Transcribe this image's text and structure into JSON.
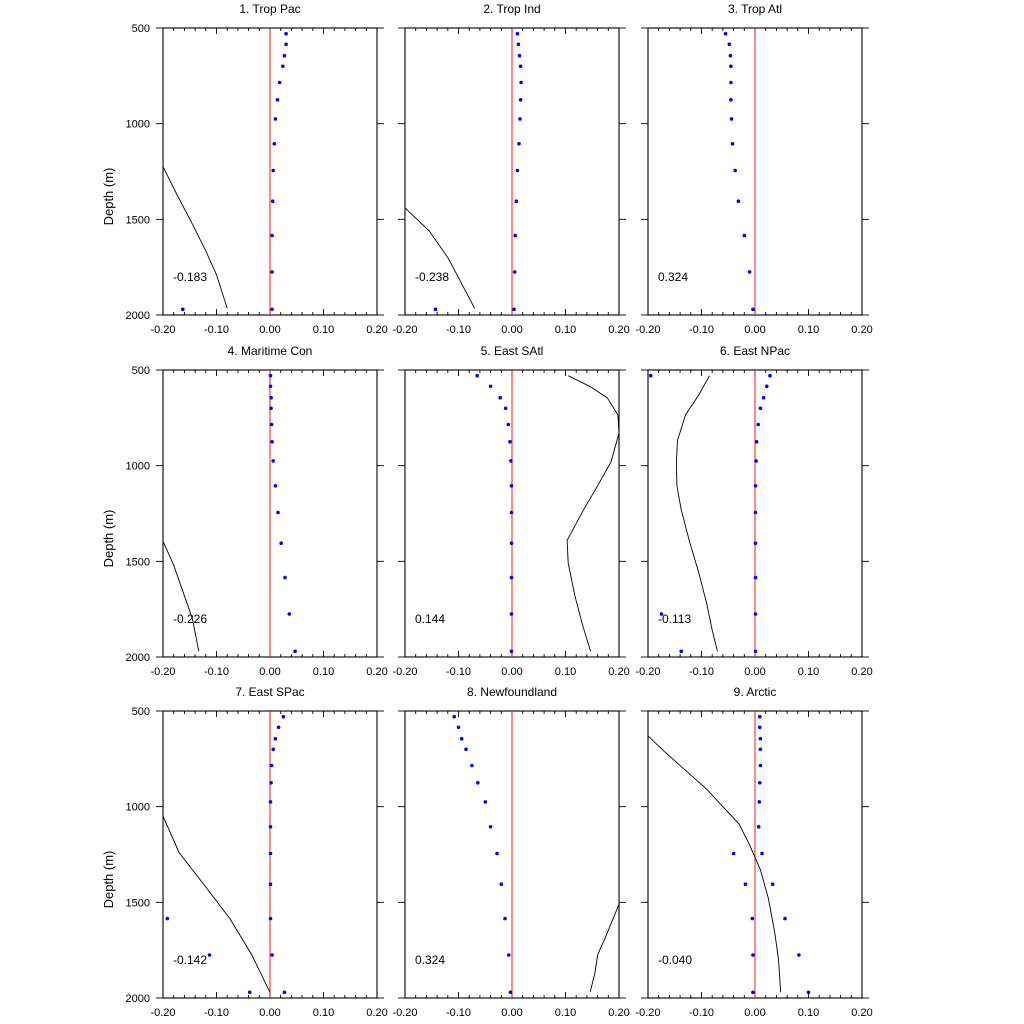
{
  "figure": {
    "ylabel": "Depth (m)",
    "xlim": [
      -0.2,
      0.2
    ],
    "ylim": [
      500,
      2000
    ],
    "y_inverted": true,
    "x_ticks": [
      "-0.20",
      "-0.10",
      "0.00",
      "0.10",
      "0.20"
    ],
    "y_ticks": [
      "500",
      "1000",
      "1500",
      "2000"
    ],
    "point_color": "#0000ff",
    "zero_line_color": "#ff0000",
    "curve_color": "#000000"
  },
  "chart_data": [
    {
      "type": "scatter",
      "title": "1. Trop Pac",
      "annotation": "-0.183",
      "points": [
        [
          0.03,
          530
        ],
        [
          0.03,
          585
        ],
        [
          0.027,
          645
        ],
        [
          0.024,
          700
        ],
        [
          0.018,
          785
        ],
        [
          0.014,
          875
        ],
        [
          0.01,
          975
        ],
        [
          0.008,
          1105
        ],
        [
          0.006,
          1245
        ],
        [
          0.005,
          1405
        ],
        [
          0.004,
          1585
        ],
        [
          0.004,
          1775
        ],
        [
          0.004,
          1970
        ],
        [
          -0.163,
          1970
        ]
      ],
      "curve": [
        [
          -0.2,
          1225
        ],
        [
          -0.175,
          1365
        ],
        [
          -0.145,
          1525
        ],
        [
          -0.12,
          1665
        ],
        [
          -0.1,
          1790
        ],
        [
          -0.08,
          1965
        ]
      ]
    },
    {
      "type": "scatter",
      "title": "2. Trop Ind",
      "annotation": "-0.238",
      "points": [
        [
          0.01,
          530
        ],
        [
          0.012,
          585
        ],
        [
          0.014,
          645
        ],
        [
          0.016,
          700
        ],
        [
          0.017,
          785
        ],
        [
          0.016,
          875
        ],
        [
          0.015,
          975
        ],
        [
          0.013,
          1105
        ],
        [
          0.01,
          1245
        ],
        [
          0.008,
          1405
        ],
        [
          0.006,
          1585
        ],
        [
          0.005,
          1775
        ],
        [
          0.004,
          1970
        ],
        [
          -0.143,
          1970
        ]
      ],
      "curve": [
        [
          -0.2,
          1440
        ],
        [
          -0.155,
          1560
        ],
        [
          -0.12,
          1700
        ],
        [
          -0.1,
          1805
        ],
        [
          -0.07,
          1965
        ]
      ]
    },
    {
      "type": "scatter",
      "title": "3. Trop Atl",
      "annotation": "0.324",
      "points": [
        [
          -0.055,
          530
        ],
        [
          -0.048,
          585
        ],
        [
          -0.046,
          645
        ],
        [
          -0.045,
          700
        ],
        [
          -0.045,
          785
        ],
        [
          -0.045,
          875
        ],
        [
          -0.044,
          975
        ],
        [
          -0.042,
          1105
        ],
        [
          -0.037,
          1245
        ],
        [
          -0.031,
          1405
        ],
        [
          -0.02,
          1585
        ],
        [
          -0.01,
          1775
        ],
        [
          -0.004,
          1970
        ]
      ],
      "curve": []
    },
    {
      "type": "scatter",
      "title": "4. Maritime Con",
      "annotation": "-0.226",
      "points": [
        [
          0.001,
          530
        ],
        [
          0.001,
          585
        ],
        [
          0.002,
          645
        ],
        [
          0.002,
          700
        ],
        [
          0.003,
          785
        ],
        [
          0.004,
          875
        ],
        [
          0.006,
          975
        ],
        [
          0.01,
          1105
        ],
        [
          0.015,
          1245
        ],
        [
          0.021,
          1405
        ],
        [
          0.028,
          1585
        ],
        [
          0.036,
          1775
        ],
        [
          0.047,
          1970
        ]
      ],
      "curve": [
        [
          -0.2,
          1395
        ],
        [
          -0.18,
          1520
        ],
        [
          -0.16,
          1680
        ],
        [
          -0.145,
          1800
        ],
        [
          -0.133,
          1970
        ]
      ]
    },
    {
      "type": "scatter",
      "title": "5. East SAtl",
      "annotation": "0.144",
      "points": [
        [
          -0.065,
          530
        ],
        [
          -0.04,
          585
        ],
        [
          -0.022,
          645
        ],
        [
          -0.012,
          700
        ],
        [
          -0.007,
          785
        ],
        [
          -0.004,
          875
        ],
        [
          -0.002,
          975
        ],
        [
          -0.001,
          1105
        ],
        [
          -0.001,
          1245
        ],
        [
          -0.001,
          1405
        ],
        [
          -0.001,
          1585
        ],
        [
          -0.001,
          1775
        ],
        [
          -0.001,
          1970
        ]
      ],
      "curve": [
        [
          0.105,
          530
        ],
        [
          0.145,
          585
        ],
        [
          0.178,
          645
        ],
        [
          0.198,
          735
        ],
        [
          0.2,
          830
        ],
        [
          0.185,
          980
        ],
        [
          0.16,
          1105
        ],
        [
          0.135,
          1225
        ],
        [
          0.103,
          1390
        ],
        [
          0.105,
          1510
        ],
        [
          0.118,
          1685
        ],
        [
          0.133,
          1845
        ],
        [
          0.147,
          1970
        ]
      ]
    },
    {
      "type": "scatter",
      "title": "6. East NPac",
      "annotation": "-0.113",
      "points": [
        [
          -0.195,
          530
        ],
        [
          0.028,
          530
        ],
        [
          0.022,
          585
        ],
        [
          0.016,
          645
        ],
        [
          0.01,
          700
        ],
        [
          0.006,
          785
        ],
        [
          0.003,
          875
        ],
        [
          0.002,
          975
        ],
        [
          0.001,
          1105
        ],
        [
          0.001,
          1245
        ],
        [
          0.001,
          1405
        ],
        [
          0.001,
          1585
        ],
        [
          0.001,
          1775
        ],
        [
          0.001,
          1970
        ],
        [
          -0.175,
          1775
        ],
        [
          -0.138,
          1970
        ]
      ],
      "curve": [
        [
          -0.085,
          530
        ],
        [
          -0.105,
          630
        ],
        [
          -0.13,
          735
        ],
        [
          -0.145,
          870
        ],
        [
          -0.147,
          985
        ],
        [
          -0.146,
          1105
        ],
        [
          -0.138,
          1230
        ],
        [
          -0.122,
          1400
        ],
        [
          -0.105,
          1560
        ],
        [
          -0.09,
          1725
        ],
        [
          -0.08,
          1860
        ],
        [
          -0.07,
          1970
        ]
      ]
    },
    {
      "type": "scatter",
      "title": "7. East SPac",
      "annotation": "-0.142",
      "points": [
        [
          0.025,
          530
        ],
        [
          0.016,
          585
        ],
        [
          0.01,
          645
        ],
        [
          0.006,
          700
        ],
        [
          0.003,
          785
        ],
        [
          0.002,
          875
        ],
        [
          0.001,
          975
        ],
        [
          0.001,
          1105
        ],
        [
          0.001,
          1245
        ],
        [
          0.001,
          1405
        ],
        [
          0.001,
          1585
        ],
        [
          0.004,
          1775
        ],
        [
          0.027,
          1970
        ],
        [
          -0.038,
          1970
        ],
        [
          -0.113,
          1775
        ],
        [
          -0.192,
          1585
        ]
      ],
      "curve": [
        [
          -0.2,
          1050
        ],
        [
          -0.17,
          1240
        ],
        [
          -0.12,
          1420
        ],
        [
          -0.075,
          1585
        ],
        [
          -0.035,
          1770
        ],
        [
          0,
          1970
        ]
      ]
    },
    {
      "type": "scatter",
      "title": "8. Newfoundland",
      "annotation": "0.324",
      "points": [
        [
          -0.108,
          530
        ],
        [
          -0.1,
          585
        ],
        [
          -0.094,
          645
        ],
        [
          -0.086,
          700
        ],
        [
          -0.075,
          785
        ],
        [
          -0.064,
          875
        ],
        [
          -0.05,
          975
        ],
        [
          -0.04,
          1105
        ],
        [
          -0.028,
          1245
        ],
        [
          -0.02,
          1405
        ],
        [
          -0.013,
          1585
        ],
        [
          -0.006,
          1775
        ],
        [
          -0.003,
          1970
        ]
      ],
      "curve": [
        [
          0.2,
          1510
        ],
        [
          0.19,
          1580
        ],
        [
          0.175,
          1680
        ],
        [
          0.16,
          1775
        ],
        [
          0.155,
          1870
        ],
        [
          0.146,
          1970
        ]
      ]
    },
    {
      "type": "scatter",
      "title": "9. Arctic",
      "annotation": "-0.040",
      "points": [
        [
          0.009,
          530
        ],
        [
          0.009,
          585
        ],
        [
          0.01,
          645
        ],
        [
          0.01,
          700
        ],
        [
          0.01,
          785
        ],
        [
          0.009,
          875
        ],
        [
          0.008,
          975
        ],
        [
          0.007,
          1105
        ],
        [
          -0.04,
          1245
        ],
        [
          0.013,
          1245
        ],
        [
          -0.018,
          1405
        ],
        [
          0.033,
          1405
        ],
        [
          -0.005,
          1585
        ],
        [
          0.056,
          1585
        ],
        [
          -0.004,
          1775
        ],
        [
          0.082,
          1775
        ],
        [
          -0.004,
          1970
        ],
        [
          0.1,
          1970
        ]
      ],
      "curve": [
        [
          -0.2,
          630
        ],
        [
          -0.17,
          710
        ],
        [
          -0.13,
          810
        ],
        [
          -0.09,
          910
        ],
        [
          -0.06,
          1000
        ],
        [
          -0.03,
          1090
        ],
        [
          -0.01,
          1200
        ],
        [
          0.01,
          1330
        ],
        [
          0.025,
          1480
        ],
        [
          0.037,
          1660
        ],
        [
          0.044,
          1800
        ],
        [
          0.048,
          1970
        ]
      ]
    }
  ]
}
